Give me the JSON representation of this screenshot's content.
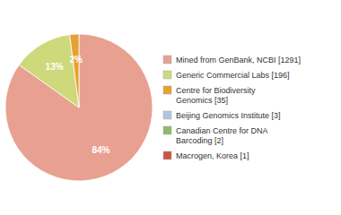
{
  "chart_data": {
    "type": "pie",
    "categories": [
      "Mined from GenBank, NCBI [1291]",
      "Generic Commercial Labs [196]",
      "Centre for Biodiversity\nGenomics [35]",
      "Beijing Genomics Institute [3]",
      "Canadian Centre for DNA\nBarcoding [2]",
      "Macrogen, Korea [1]"
    ],
    "values": [
      84,
      13,
      2,
      0,
      0,
      0
    ],
    "value_labels": [
      "84%",
      "13%",
      "2%",
      null,
      null,
      null
    ],
    "colors": [
      "#e8a090",
      "#cdd97a",
      "#e8a030",
      "#aec6e0",
      "#8fba6e",
      "#cc5544"
    ],
    "data_labels": true,
    "legend": "right"
  }
}
